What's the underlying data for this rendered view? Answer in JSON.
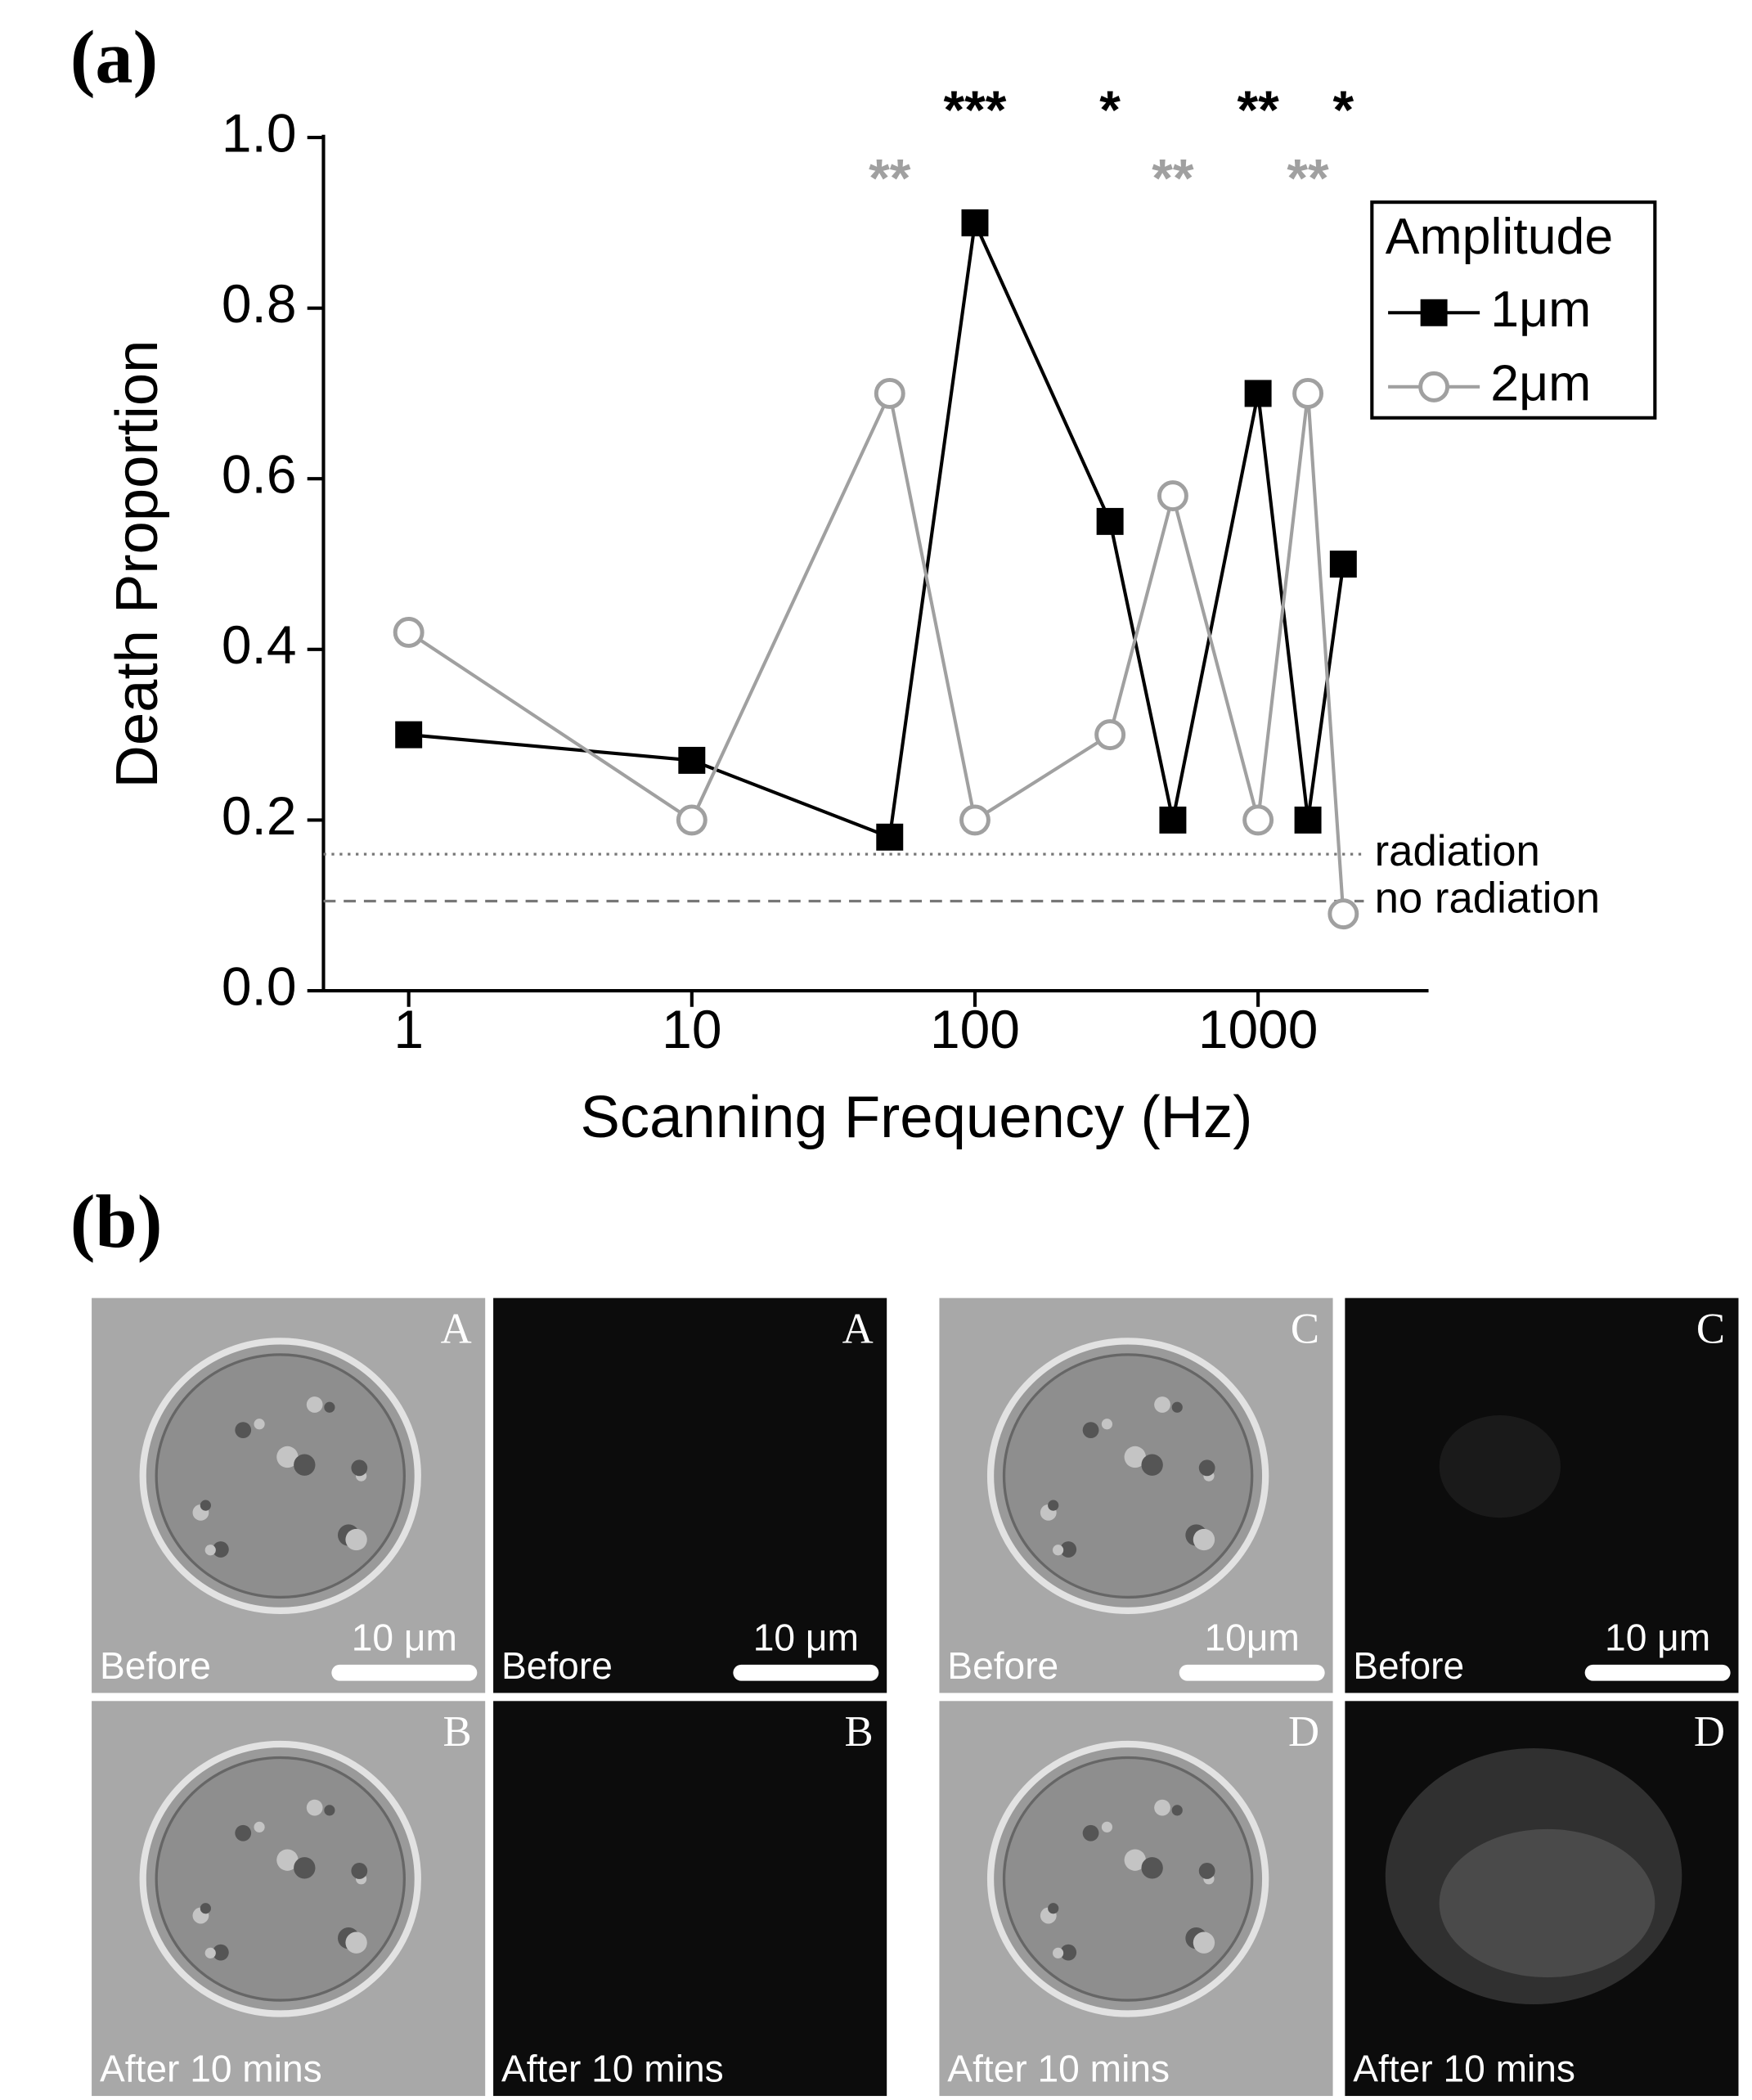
{
  "chart_data": {
    "type": "line",
    "log_x": true,
    "ylabel": "Death Proportion",
    "xlabel": "Scanning Frequency (Hz)",
    "x": [
      1,
      10,
      50,
      100,
      300,
      500,
      1000,
      1500,
      2000
    ],
    "series": [
      {
        "name": "1μm",
        "color": "#000000",
        "marker": "filled-square",
        "values": [
          0.3,
          0.27,
          0.18,
          0.9,
          0.55,
          0.2,
          0.7,
          0.2,
          0.5
        ]
      },
      {
        "name": "2μm",
        "color": "#a0a0a0",
        "marker": "open-circle",
        "values": [
          0.42,
          0.2,
          0.7,
          0.2,
          0.3,
          0.58,
          0.2,
          0.7,
          0.09
        ]
      }
    ],
    "xlim": [
      0.5,
      4000
    ],
    "xticks": [
      1,
      10,
      100,
      1000
    ],
    "ylim": [
      0,
      1
    ],
    "yticks": [
      {
        "value": 0,
        "label": "0.0"
      },
      0.2,
      0.4,
      0.6,
      0.8,
      {
        "value": 1,
        "label": "1.0"
      }
    ],
    "legend_title": "Amplitude",
    "legend": "top-right",
    "reference_lines": [
      {
        "value": 0.16,
        "label": "radiation",
        "style": "dotted",
        "color": "#777777"
      },
      {
        "value": 0.105,
        "label": "no radiation",
        "style": "dashed",
        "color": "#777777"
      }
    ],
    "annotations": [
      {
        "text": "***",
        "x": 100,
        "y": 1.04,
        "color": "#000000"
      },
      {
        "text": "*",
        "x": 300,
        "y": 1.04,
        "color": "#000000"
      },
      {
        "text": "**",
        "x": 1000,
        "y": 1.04,
        "color": "#000000"
      },
      {
        "text": "*",
        "x": 2000,
        "y": 1.04,
        "color": "#000000"
      },
      {
        "text": "**",
        "x": 50,
        "y": 0.96,
        "color": "#a0a0a0"
      },
      {
        "text": "**",
        "x": 500,
        "y": 0.96,
        "color": "#a0a0a0"
      },
      {
        "text": "**",
        "x": 1500,
        "y": 0.96,
        "color": "#a0a0a0"
      }
    ]
  },
  "panel_labels": [
    "(a)",
    "(b)"
  ],
  "micrographs": [
    {
      "letter": "A",
      "caption": "Before",
      "scale_bar": "10 μm",
      "kind": "bright"
    },
    {
      "letter": "A",
      "caption": "Before",
      "scale_bar": "10 μm",
      "kind": "fluor"
    },
    {
      "letter": "C",
      "caption": "Before",
      "scale_bar": "10μm",
      "kind": "bright"
    },
    {
      "letter": "C",
      "caption": "Before",
      "scale_bar": "10 μm",
      "kind": "fluor"
    },
    {
      "letter": "B",
      "caption": "After 10 mins",
      "kind": "bright"
    },
    {
      "letter": "B",
      "caption": "After 10 mins",
      "kind": "fluor"
    },
    {
      "letter": "D",
      "caption": "After 10 mins",
      "kind": "bright"
    },
    {
      "letter": "D",
      "caption": "After 10 mins",
      "kind": "fluor"
    }
  ]
}
